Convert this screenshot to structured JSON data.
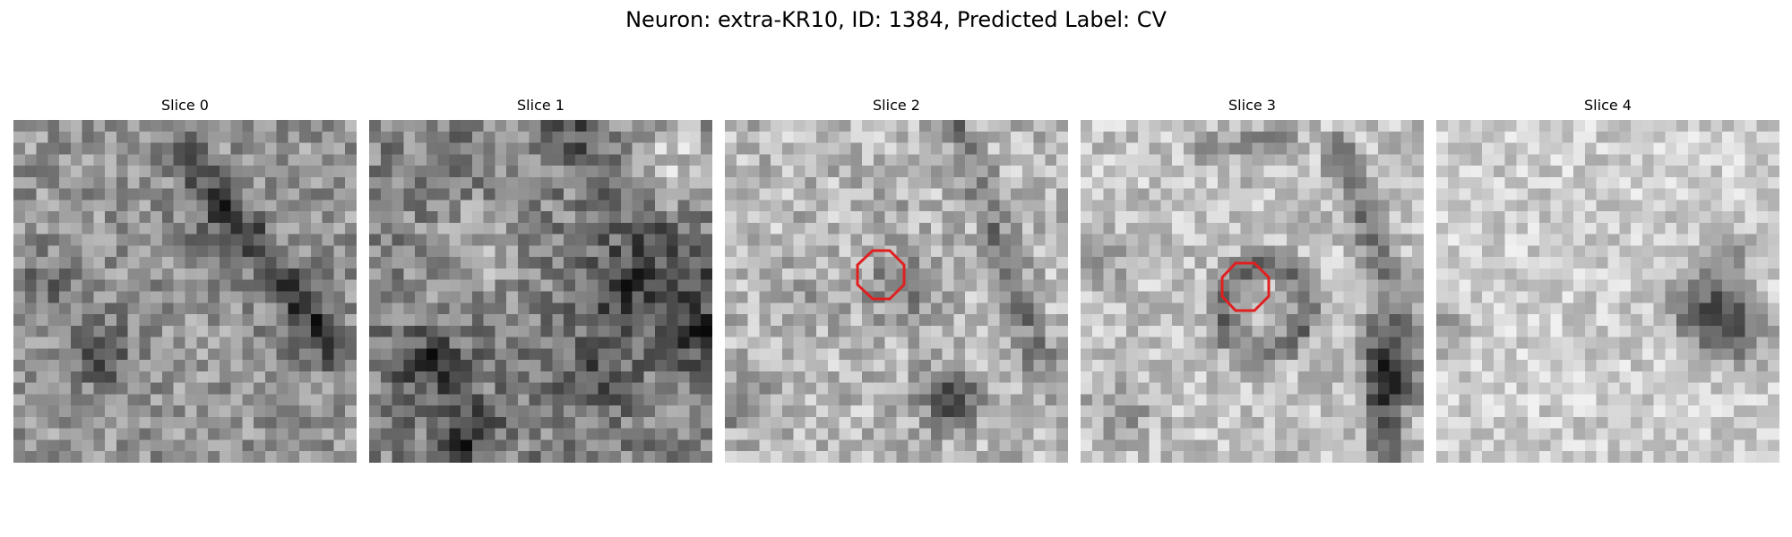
{
  "figure": {
    "title": "Neuron: extra-KR10, ID: 1384, Predicted Label: CV"
  },
  "panels": [
    {
      "title": "Slice 0",
      "seed": 11,
      "base": 150,
      "contrast": 1.0,
      "roi": false,
      "dark_blobs": [
        [
          7,
          20,
          2.2,
          70
        ],
        [
          3,
          14,
          2.0,
          50
        ],
        [
          18,
          9,
          3.0,
          40
        ],
        [
          25,
          17,
          2.5,
          40
        ]
      ],
      "dark_lines": [
        [
          14,
          2,
          28,
          20,
          1.2,
          60
        ]
      ]
    },
    {
      "title": "Slice 1",
      "seed": 29,
      "base": 130,
      "contrast": 1.1,
      "roi": false,
      "dark_blobs": [
        [
          22,
          14,
          3.0,
          70
        ],
        [
          28,
          18,
          2.0,
          80
        ],
        [
          5,
          21,
          2.0,
          80
        ],
        [
          8,
          27,
          2.0,
          80
        ],
        [
          19,
          22,
          2.0,
          60
        ]
      ],
      "light_blobs": [
        [
          26,
          3,
          3.0,
          70
        ],
        [
          9,
          11,
          3.0,
          50
        ]
      ],
      "dark_lines": [
        [
          17,
          0,
          29,
          14,
          1.2,
          50
        ]
      ]
    },
    {
      "title": "Slice 2",
      "seed": 47,
      "base": 185,
      "contrast": 1.0,
      "roi": true,
      "dark_blobs": [
        [
          15,
          14,
          2.2,
          60
        ],
        [
          19,
          24,
          1.8,
          110
        ],
        [
          1,
          24,
          1.6,
          80
        ],
        [
          13,
          8,
          1.5,
          30
        ],
        [
          6,
          16,
          2.0,
          30
        ]
      ],
      "dark_lines": [
        [
          20,
          0,
          28,
          23,
          1.0,
          60
        ]
      ]
    },
    {
      "title": "Slice 3",
      "seed": 63,
      "base": 195,
      "contrast": 0.9,
      "roi": true,
      "dark_blobs": [
        [
          27,
          22,
          2.0,
          110
        ],
        [
          3,
          25,
          2.0,
          50
        ],
        [
          2,
          12,
          1.5,
          40
        ]
      ],
      "dark_rings": [
        [
          15.5,
          16,
          3.8,
          0.9,
          80
        ]
      ],
      "dark_lines": [
        [
          22,
          2,
          28,
          18,
          1.0,
          70
        ],
        [
          26,
          18,
          26,
          30,
          1.2,
          80
        ],
        [
          10,
          2,
          17,
          1,
          0.9,
          50
        ]
      ]
    },
    {
      "title": "Slice 4",
      "seed": 81,
      "base": 205,
      "contrast": 0.8,
      "roi": false,
      "dark_blobs": [
        [
          23,
          16,
          2.2,
          110
        ],
        [
          26,
          18,
          2.0,
          90
        ],
        [
          25,
          11,
          1.5,
          60
        ],
        [
          0,
          18,
          1.5,
          50
        ]
      ]
    }
  ],
  "colors": {
    "roi": "#e02020"
  }
}
